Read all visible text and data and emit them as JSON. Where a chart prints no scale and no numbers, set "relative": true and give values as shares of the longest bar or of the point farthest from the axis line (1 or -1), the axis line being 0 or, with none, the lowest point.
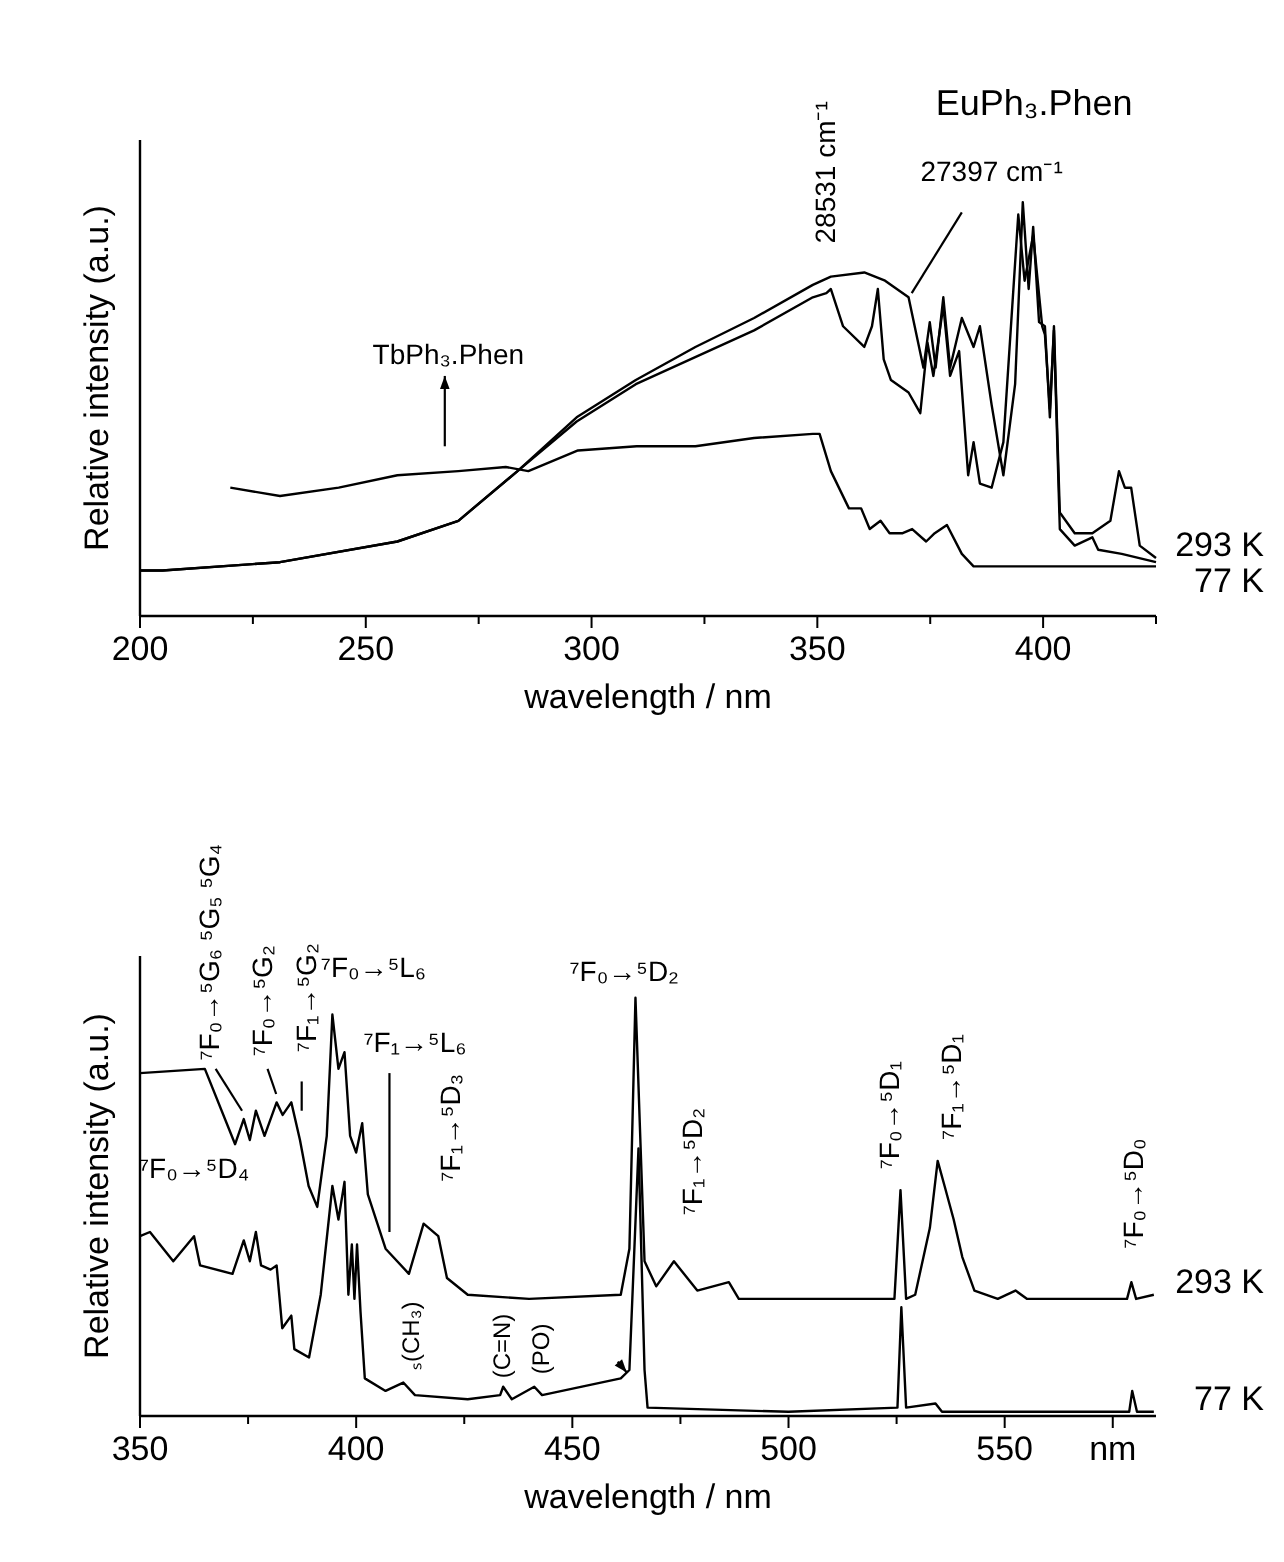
{
  "chart_data": [
    {
      "type": "line",
      "relative": true,
      "xlabel": "wavelength / nm",
      "ylabel": "Relative intensity (a.u.)",
      "xlim": [
        200,
        425
      ],
      "xticks": [
        200,
        {
          "value": 225,
          "label": null
        },
        250,
        {
          "value": 275,
          "label": null
        },
        300,
        {
          "value": 325,
          "label": null
        },
        350,
        {
          "value": 375,
          "label": null
        },
        400,
        {
          "value": 425,
          "label": null
        }
      ],
      "annotations": [
        "TbPh₃.Phen",
        "EuPh₃.Phen",
        "28531 cm⁻¹",
        "27397 cm⁻¹"
      ],
      "series": [
        {
          "color": "#000000",
          "x": [
            220,
            231,
            244,
            257,
            270.5,
            281,
            286,
            297,
            310,
            323,
            336,
            349,
            350.5,
            353,
            357,
            359.7,
            361.6,
            364,
            366,
            368.9,
            371,
            374.1,
            376,
            378.7,
            382,
            384.6,
            400,
            425
          ],
          "values": [
            0.31,
            0.29,
            0.31,
            0.34,
            0.35,
            0.36,
            0.35,
            0.4,
            0.41,
            0.41,
            0.43,
            0.44,
            0.44,
            0.35,
            0.26,
            0.26,
            0.21,
            0.23,
            0.2,
            0.2,
            0.21,
            0.18,
            0.2,
            0.22,
            0.15,
            0.12,
            0.12,
            0.12
          ]
        },
        {
          "name": "293 K",
          "color": "#000000",
          "x": [
            200,
            205,
            231,
            257,
            270.5,
            283.6,
            296.7,
            309.8,
            323,
            336,
            349,
            353,
            360.4,
            365,
            370.2,
            373.5,
            374.9,
            376.2,
            377.9,
            379.4,
            382,
            384.6,
            386,
            388.6,
            391.2,
            393.8,
            395.5,
            396.8,
            397.8,
            399.1,
            400.4,
            401.5,
            402.4,
            403.7,
            407,
            410.9,
            414.9,
            416.8,
            418.1,
            419.5,
            421.4,
            425
          ],
          "values": [
            0.11,
            0.11,
            0.13,
            0.18,
            0.23,
            0.35,
            0.48,
            0.57,
            0.65,
            0.72,
            0.8,
            0.82,
            0.83,
            0.81,
            0.77,
            0.6,
            0.71,
            0.6,
            0.77,
            0.6,
            0.72,
            0.65,
            0.7,
            0.51,
            0.34,
            0.56,
            1.0,
            0.79,
            0.94,
            0.71,
            0.7,
            0.48,
            0.7,
            0.25,
            0.2,
            0.2,
            0.23,
            0.35,
            0.31,
            0.31,
            0.17,
            0.14
          ]
        },
        {
          "name": "77 K",
          "color": "#000000",
          "x": [
            200,
            205,
            231,
            257,
            270.5,
            283.6,
            296.7,
            309.8,
            336,
            349,
            352,
            353,
            355.7,
            360.4,
            362.1,
            363.4,
            364.7,
            366.3,
            370.2,
            372.8,
            374.4,
            375.7,
            377.9,
            379.4,
            381.4,
            383.4,
            384.6,
            386,
            388.6,
            391.2,
            394.5,
            395.9,
            397.8,
            399.8,
            400.4,
            401.5,
            402.4,
            403.7,
            407,
            410.9,
            412.2,
            417.4,
            425
          ],
          "values": [
            0.11,
            0.11,
            0.13,
            0.18,
            0.23,
            0.35,
            0.47,
            0.56,
            0.69,
            0.77,
            0.78,
            0.79,
            0.7,
            0.65,
            0.7,
            0.79,
            0.62,
            0.57,
            0.54,
            0.49,
            0.66,
            0.58,
            0.75,
            0.58,
            0.64,
            0.34,
            0.42,
            0.32,
            0.31,
            0.42,
            0.97,
            0.81,
            0.92,
            0.7,
            0.68,
            0.5,
            0.69,
            0.21,
            0.17,
            0.19,
            0.16,
            0.15,
            0.13
          ]
        }
      ]
    },
    {
      "type": "line",
      "relative": true,
      "xlabel": "wavelength / nm",
      "ylabel": "Relative intensity (a.u.)",
      "xlim": [
        350,
        585
      ],
      "xticks": [
        350,
        {
          "value": 375,
          "label": null
        },
        400,
        {
          "value": 425,
          "label": null
        },
        450,
        {
          "value": 475,
          "label": null
        },
        500,
        {
          "value": 525,
          "label": null
        },
        550,
        {
          "value": 575,
          "label": "nm"
        }
      ],
      "annotations": [
        "⁷F₀→⁵G₆ ⁵G₅ ⁵G₄",
        "⁷F₀→⁵G₂",
        "⁷F₁→⁵G₂",
        "⁷F₀→⁵L₆",
        "⁷F₁→⁵L₆",
        "⁷F₁→⁵D₃",
        "⁷F₀→⁵D₄",
        "⁷F₀→⁵D₂",
        "⁷F₁→⁵D₂",
        "⁷F₀→⁵D₁",
        "⁷F₁→⁵D₁",
        "⁷F₀→⁵D₀",
        "ₛ(CH₃)",
        "(C=N)",
        "(PO)"
      ],
      "series": [
        {
          "name": "293 K",
          "color": "#000000",
          "x": [
            350,
            365,
            372,
            374,
            375.4,
            376.8,
            378.8,
            381.6,
            383,
            385,
            387,
            389,
            391,
            393.2,
            394.5,
            395.9,
            397.3,
            398.6,
            400,
            401.4,
            402.7,
            406.8,
            412.2,
            415.6,
            419,
            421,
            425.8,
            440,
            461.2,
            463.2,
            464.6,
            466.7,
            469.4,
            473.5,
            478.9,
            486.2,
            488.5,
            500,
            524.5,
            525.9,
            527.2,
            529.3,
            532.7,
            534.5,
            536.1,
            538.2,
            540.2,
            543,
            548.4,
            552.5,
            555.2,
            578.3,
            579.3,
            580.4,
            584.5
          ],
          "values": [
            0.82,
            0.83,
            0.65,
            0.71,
            0.66,
            0.73,
            0.67,
            0.75,
            0.72,
            0.75,
            0.66,
            0.55,
            0.5,
            0.67,
            0.96,
            0.83,
            0.87,
            0.67,
            0.63,
            0.7,
            0.53,
            0.4,
            0.34,
            0.46,
            0.43,
            0.33,
            0.29,
            0.28,
            0.29,
            0.4,
            1.0,
            0.37,
            0.31,
            0.37,
            0.3,
            0.32,
            0.28,
            0.28,
            0.28,
            0.54,
            0.28,
            0.29,
            0.45,
            0.61,
            0.55,
            0.47,
            0.38,
            0.3,
            0.28,
            0.3,
            0.28,
            0.28,
            0.32,
            0.28,
            0.29
          ]
        },
        {
          "name": "77 K",
          "color": "#000000",
          "x": [
            350,
            352.3,
            357.7,
            362.5,
            363.9,
            371.4,
            374,
            375.4,
            376.8,
            378,
            380.2,
            381.6,
            382.9,
            385,
            385.7,
            389.1,
            391.8,
            394.5,
            395.9,
            397.3,
            398.2,
            399,
            399.6,
            400.2,
            401,
            402,
            406.8,
            410.9,
            413.6,
            425.8,
            433.3,
            434,
            436,
            441.2,
            443,
            461.2,
            463.2,
            465.3,
            466.7,
            467.4,
            500,
            525.2,
            526.1,
            527.2,
            534,
            535.5,
            578.8,
            579.5,
            580.6,
            584.5
          ],
          "values": [
            0.43,
            0.44,
            0.37,
            0.43,
            0.36,
            0.34,
            0.42,
            0.37,
            0.44,
            0.36,
            0.35,
            0.36,
            0.21,
            0.24,
            0.16,
            0.14,
            0.29,
            0.55,
            0.47,
            0.56,
            0.29,
            0.41,
            0.28,
            0.41,
            0.25,
            0.09,
            0.06,
            0.08,
            0.05,
            0.04,
            0.05,
            0.07,
            0.04,
            0.07,
            0.05,
            0.09,
            0.11,
            0.64,
            0.11,
            0.02,
            0.01,
            0.02,
            0.26,
            0.02,
            0.03,
            0.01,
            0.01,
            0.06,
            0.01,
            0.01
          ]
        }
      ]
    }
  ]
}
